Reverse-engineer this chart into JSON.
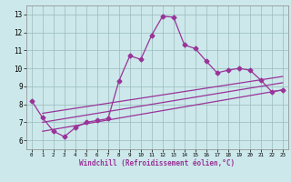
{
  "xlabel": "Windchill (Refroidissement éolien,°C)",
  "bg_color": "#cce8ea",
  "line_color": "#993399",
  "xlim": [
    -0.5,
    23.5
  ],
  "ylim": [
    5.5,
    13.5
  ],
  "xticks": [
    0,
    1,
    2,
    3,
    4,
    5,
    6,
    7,
    8,
    9,
    10,
    11,
    12,
    13,
    14,
    15,
    16,
    17,
    18,
    19,
    20,
    21,
    22,
    23
  ],
  "yticks": [
    6,
    7,
    8,
    9,
    10,
    11,
    12,
    13
  ],
  "main_x": [
    0,
    1,
    2,
    3,
    4,
    5,
    6,
    7,
    8,
    9,
    10,
    11,
    12,
    13,
    14,
    15,
    16,
    17,
    18,
    19,
    20,
    21,
    22,
    23
  ],
  "main_y": [
    8.2,
    7.25,
    6.5,
    6.2,
    6.7,
    7.0,
    7.1,
    7.2,
    9.3,
    10.7,
    10.5,
    11.85,
    12.9,
    12.85,
    11.3,
    11.1,
    10.4,
    9.75,
    9.9,
    10.0,
    9.9,
    9.35,
    8.7,
    8.8
  ],
  "line2_x": [
    1,
    23
  ],
  "line2_y": [
    6.5,
    8.8
  ],
  "line3_x": [
    1,
    23
  ],
  "line3_y": [
    7.0,
    9.2
  ],
  "line4_x": [
    1,
    23
  ],
  "line4_y": [
    7.5,
    9.55
  ],
  "grid_color": "#99bbbb",
  "marker": "D",
  "markersize": 2.5,
  "linewidth": 0.9
}
